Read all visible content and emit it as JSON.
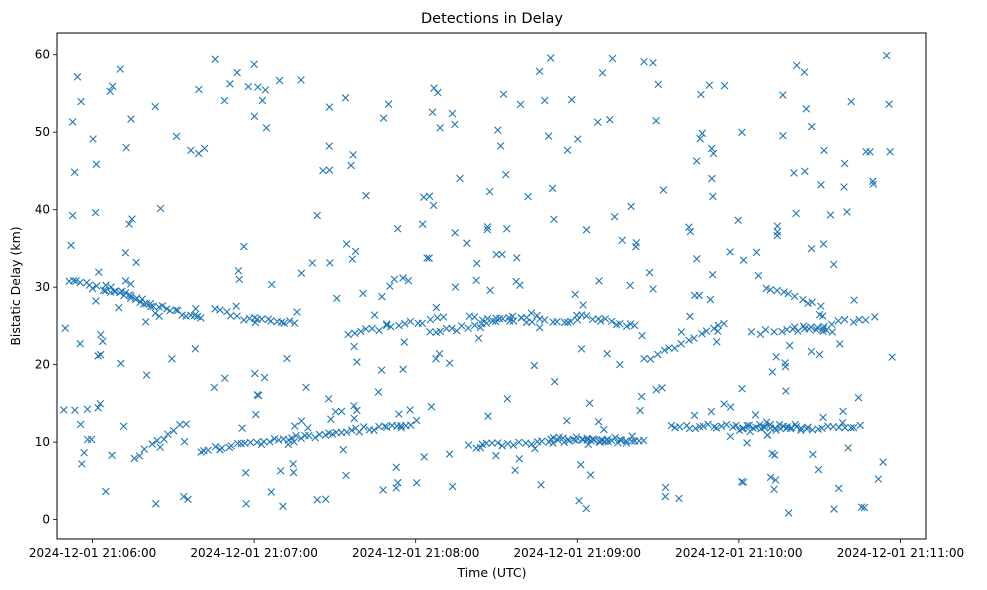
{
  "chart_data": {
    "type": "scatter",
    "title": "Detections in Delay",
    "xlabel": "Time (UTC)",
    "ylabel": "Bistatic Delay (km)",
    "marker": "x",
    "color": "#1f77b4",
    "x_unit": "seconds after 2024-12-01 21:06:00 UTC",
    "xlim": [
      -13.2,
      309.5
    ],
    "ylim": [
      -2.5,
      62.8
    ],
    "xticks": [
      {
        "value": 0,
        "label": "2024-12-01 21:06:00"
      },
      {
        "value": 60,
        "label": "2024-12-01 21:07:00"
      },
      {
        "value": 120,
        "label": "2024-12-01 21:08:00"
      },
      {
        "value": 180,
        "label": "2024-12-01 21:09:00"
      },
      {
        "value": 240,
        "label": "2024-12-01 21:10:00"
      },
      {
        "value": 300,
        "label": "2024-12-01 21:11:00"
      }
    ],
    "yticks": [
      {
        "value": 0,
        "label": "0"
      },
      {
        "value": 10,
        "label": "10"
      },
      {
        "value": 20,
        "label": "20"
      },
      {
        "value": 30,
        "label": "30"
      },
      {
        "value": 40,
        "label": "40"
      },
      {
        "value": 50,
        "label": "50"
      },
      {
        "value": 60,
        "label": "60"
      }
    ],
    "tracks": [
      {
        "name": "track-low-a",
        "x_start": -11.0,
        "x_end": 2.0,
        "y_start": 14.2,
        "y_end": 14.2,
        "count": 4
      },
      {
        "name": "track-mid-early",
        "x_start": -9.0,
        "x_end": 40.0,
        "y_start": 31.0,
        "y_end": 26.0,
        "count": 32
      },
      {
        "name": "track-mid-early-b",
        "x_start": 5.0,
        "x_end": 25.0,
        "y_start": 30.5,
        "y_end": 26.5,
        "count": 12
      },
      {
        "name": "track-low-b",
        "x_start": 15.0,
        "x_end": 35.0,
        "y_start": 8.0,
        "y_end": 12.5,
        "count": 10
      },
      {
        "name": "track-low-c",
        "x_start": 40.0,
        "x_end": 120.0,
        "y_start": 9.0,
        "y_end": 12.5,
        "count": 48
      },
      {
        "name": "track-mid-b",
        "x_start": 45.0,
        "x_end": 60.0,
        "y_start": 27.0,
        "y_end": 25.5,
        "count": 8
      },
      {
        "name": "track-mid-c",
        "x_start": 60.0,
        "x_end": 75.0,
        "y_start": 26.0,
        "y_end": 25.5,
        "count": 10
      },
      {
        "name": "track-mid-d",
        "x_start": 95.0,
        "x_end": 130.0,
        "y_start": 24.0,
        "y_end": 26.0,
        "count": 16
      },
      {
        "name": "track-mid-e",
        "x_start": 125.0,
        "x_end": 165.0,
        "y_start": 24.0,
        "y_end": 26.5,
        "count": 20
      },
      {
        "name": "track-mid-f",
        "x_start": 140.0,
        "x_end": 180.0,
        "y_start": 26.0,
        "y_end": 25.5,
        "count": 18
      },
      {
        "name": "track-low-d",
        "x_start": 140.0,
        "x_end": 200.0,
        "y_start": 9.5,
        "y_end": 10.5,
        "count": 30
      },
      {
        "name": "track-low-e",
        "x_start": 170.0,
        "x_end": 205.0,
        "y_start": 10.5,
        "y_end": 10.0,
        "count": 22
      },
      {
        "name": "track-mid-g",
        "x_start": 180.0,
        "x_end": 200.0,
        "y_start": 26.5,
        "y_end": 25.0,
        "count": 12
      },
      {
        "name": "track-mid-h",
        "x_start": 205.0,
        "x_end": 235.0,
        "y_start": 20.5,
        "y_end": 25.5,
        "count": 14
      },
      {
        "name": "track-low-f",
        "x_start": 215.0,
        "x_end": 265.0,
        "y_start": 12.0,
        "y_end": 12.0,
        "count": 30
      },
      {
        "name": "track-low-g",
        "x_start": 240.0,
        "x_end": 285.0,
        "y_start": 11.5,
        "y_end": 12.0,
        "count": 24
      },
      {
        "name": "track-mid-i",
        "x_start": 245.0,
        "x_end": 290.0,
        "y_start": 24.0,
        "y_end": 26.0,
        "count": 18
      },
      {
        "name": "track-mid-j",
        "x_start": 250.0,
        "x_end": 270.0,
        "y_start": 30.0,
        "y_end": 27.5,
        "count": 10
      },
      {
        "name": "track-mid-k",
        "x_start": 260.0,
        "x_end": 275.0,
        "y_start": 24.5,
        "y_end": 24.5,
        "count": 8
      }
    ],
    "clutter": {
      "count": 360,
      "x_range": [
        -11.0,
        297.0
      ],
      "y_range": [
        0.5,
        60.0
      ],
      "description": "uniformly scattered false detections"
    }
  }
}
